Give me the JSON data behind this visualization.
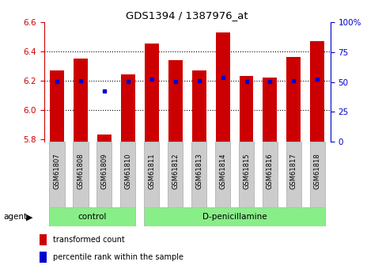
{
  "title": "GDS1394 / 1387976_at",
  "samples": [
    "GSM61807",
    "GSM61808",
    "GSM61809",
    "GSM61810",
    "GSM61811",
    "GSM61812",
    "GSM61813",
    "GSM61814",
    "GSM61815",
    "GSM61816",
    "GSM61817",
    "GSM61818"
  ],
  "red_top": [
    6.27,
    6.35,
    5.83,
    6.24,
    6.45,
    6.34,
    6.27,
    6.53,
    6.23,
    6.22,
    6.36,
    6.47
  ],
  "red_bottom": [
    5.78,
    5.78,
    5.78,
    5.78,
    5.78,
    5.78,
    5.78,
    5.78,
    5.78,
    5.78,
    5.78,
    5.78
  ],
  "blue_y": [
    6.19,
    6.2,
    6.13,
    6.19,
    6.21,
    6.19,
    6.2,
    6.22,
    6.19,
    6.19,
    6.2,
    6.21
  ],
  "control_indices": [
    0,
    1,
    2,
    3
  ],
  "dpenicillamine_indices": [
    4,
    5,
    6,
    7,
    8,
    9,
    10,
    11
  ],
  "ylim": [
    5.78,
    6.6
  ],
  "y_ticks_left": [
    5.8,
    6.0,
    6.2,
    6.4,
    6.6
  ],
  "y_ticks_right_vals": [
    0,
    25,
    50,
    75,
    100
  ],
  "bar_color": "#cc0000",
  "blue_color": "#0000cc",
  "sample_bg": "#cccccc",
  "dpen_bg": "#88ee88",
  "axis_color_left": "#cc0000",
  "axis_color_right": "#0000cc",
  "grid_color": "#000000",
  "xlabel_agent": "agent",
  "label_control": "control",
  "label_dpen": "D-penicillamine",
  "legend_red": "transformed count",
  "legend_blue": "percentile rank within the sample",
  "bar_width": 0.6
}
